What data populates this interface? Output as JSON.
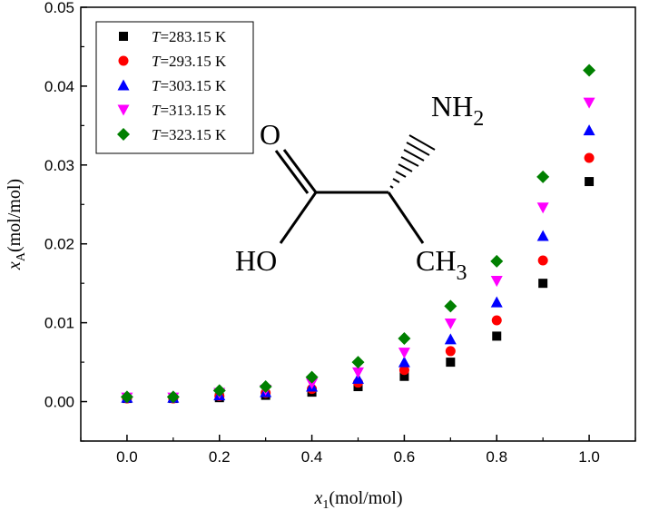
{
  "chart_data": {
    "type": "scatter",
    "x": [
      0.0,
      0.1,
      0.2,
      0.3,
      0.4,
      0.5,
      0.6,
      0.7,
      0.8,
      0.9,
      1.0
    ],
    "series": [
      {
        "name": "T=283.15 K",
        "T_value": "=283.15 K",
        "color": "#000000",
        "marker": "square",
        "values": [
          0.0004,
          0.0004,
          0.0005,
          0.0008,
          0.0012,
          0.0019,
          0.0032,
          0.005,
          0.0083,
          0.015,
          0.0279
        ]
      },
      {
        "name": "T=293.15 K",
        "T_value": "=293.15 K",
        "color": "#ff0000",
        "marker": "circle",
        "values": [
          0.0004,
          0.0004,
          0.0007,
          0.0011,
          0.0016,
          0.0024,
          0.004,
          0.0064,
          0.0103,
          0.0179,
          0.0309
        ]
      },
      {
        "name": "T=303.15 K",
        "T_value": "=303.15 K",
        "color": "#0000ff",
        "marker": "triangle-up",
        "values": [
          0.0005,
          0.0005,
          0.0008,
          0.0012,
          0.0019,
          0.0029,
          0.005,
          0.0079,
          0.0126,
          0.021,
          0.0344
        ]
      },
      {
        "name": "T=313.15 K",
        "T_value": "=313.15 K",
        "color": "#ff00ff",
        "marker": "triangle-down",
        "values": [
          0.0005,
          0.0005,
          0.0011,
          0.0015,
          0.0023,
          0.0037,
          0.0062,
          0.0099,
          0.0153,
          0.0246,
          0.0379
        ]
      },
      {
        "name": "T=323.15 K",
        "T_value": "=323.15 K",
        "color": "#008000",
        "marker": "diamond",
        "values": [
          0.0006,
          0.0006,
          0.0014,
          0.0019,
          0.0031,
          0.005,
          0.008,
          0.0121,
          0.0178,
          0.0285,
          0.042
        ]
      }
    ],
    "xlim": [
      -0.1,
      1.1
    ],
    "ylim": [
      -0.005,
      0.05
    ],
    "xticks": [
      "0.0",
      "0.2",
      "0.4",
      "0.6",
      "0.8",
      "1.0"
    ],
    "yticks": [
      "0.00",
      "0.01",
      "0.02",
      "0.03",
      "0.04",
      "0.05"
    ],
    "xlabel": {
      "var": "x",
      "sub": "1",
      "unit": "(mol/mol)"
    },
    "ylabel": {
      "var": "x",
      "sub": "A",
      "unit": "(mol/mol)"
    },
    "legend_placement": "top-left",
    "legend_italic_T": "T",
    "grid": false
  },
  "molecule": {
    "labels": {
      "nh2_main": "NH",
      "nh2_sub": "2",
      "o": "O",
      "ho": "HO",
      "ch3_main": "CH",
      "ch3_sub": "3"
    }
  }
}
